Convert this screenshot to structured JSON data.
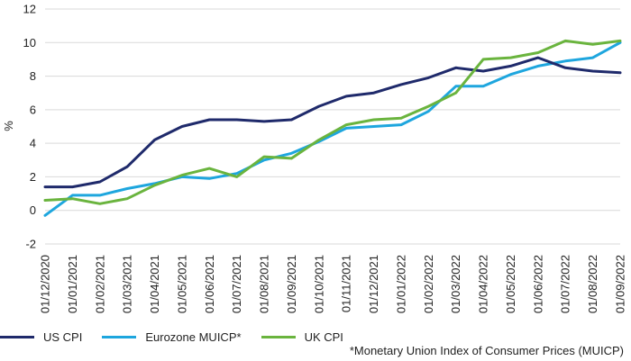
{
  "chart_data": {
    "type": "line",
    "x": [
      "01/12/2020",
      "01/01/2021",
      "01/02/2021",
      "01/03/2021",
      "01/04/2021",
      "01/05/2021",
      "01/06/2021",
      "01/07/2021",
      "01/08/2021",
      "01/09/2021",
      "01/10/2021",
      "01/11/2021",
      "01/12/2021",
      "01/01/2022",
      "01/02/2022",
      "01/03/2022",
      "01/04/2022",
      "01/05/2022",
      "01/06/2022",
      "01/07/2022",
      "01/08/2022",
      "01/09/2022"
    ],
    "ylabel": "%",
    "ylim": [
      -2,
      12
    ],
    "yticks": [
      -2,
      0,
      2,
      4,
      6,
      8,
      10,
      12
    ],
    "grid": true,
    "legend_position": "bottom-left",
    "series": [
      {
        "name": "US CPI",
        "color": "#1f2a6b",
        "values": [
          1.4,
          1.4,
          1.7,
          2.6,
          4.2,
          5.0,
          5.4,
          5.4,
          5.3,
          5.4,
          6.2,
          6.8,
          7.0,
          7.5,
          7.9,
          8.5,
          8.3,
          8.6,
          9.1,
          8.5,
          8.3,
          8.2
        ]
      },
      {
        "name": "Eurozone MUICP*",
        "color": "#1ea6de",
        "values": [
          -0.3,
          0.9,
          0.9,
          1.3,
          1.6,
          2.0,
          1.9,
          2.2,
          3.0,
          3.4,
          4.1,
          4.9,
          5.0,
          5.1,
          5.9,
          7.4,
          7.4,
          8.1,
          8.6,
          8.9,
          9.1,
          10.0
        ]
      },
      {
        "name": "UK CPI",
        "color": "#6ab43e",
        "values": [
          0.6,
          0.7,
          0.4,
          0.7,
          1.5,
          2.1,
          2.5,
          2.0,
          3.2,
          3.1,
          4.2,
          5.1,
          5.4,
          5.5,
          6.2,
          7.0,
          9.0,
          9.1,
          9.4,
          10.1,
          9.9,
          10.1
        ]
      }
    ],
    "footnote": "*Monetary Union Index of Consumer Prices (MUICP)"
  }
}
